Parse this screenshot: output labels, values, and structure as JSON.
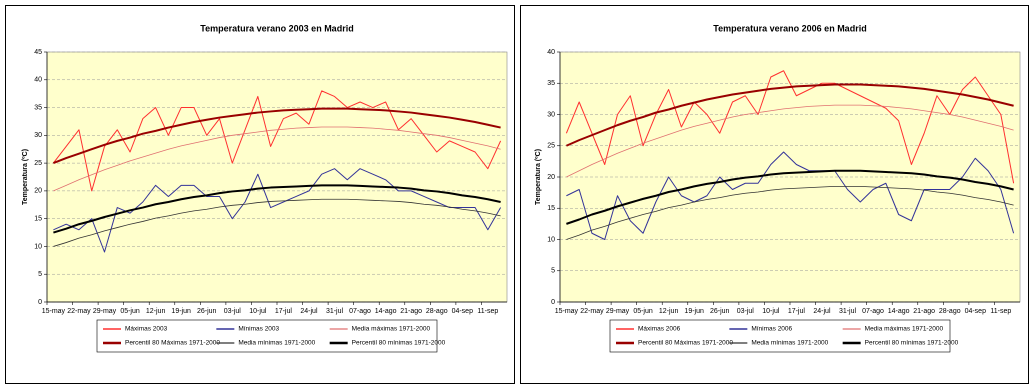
{
  "chart_data": [
    {
      "type": "line",
      "title": "Temperatura verano 2003 en Madrid",
      "y_label": "Temperatura (ºC)",
      "categories": [
        "15-may",
        null,
        "22-may",
        null,
        "29-may",
        null,
        "05-jun",
        null,
        "12-jun",
        null,
        "19-jun",
        null,
        "26-jun",
        null,
        "03-jul",
        null,
        "10-jul",
        null,
        "17-jul",
        null,
        "24-jul",
        null,
        "31-jul",
        null,
        "07-ago",
        null,
        "14-ago",
        null,
        "21-ago",
        null,
        "28-ago",
        null,
        "04-sep",
        null,
        "11-sep",
        null
      ],
      "ylim": [
        0,
        45
      ],
      "yticks": [
        0,
        5,
        10,
        15,
        20,
        25,
        30,
        35,
        40,
        45
      ],
      "grid": true,
      "series": [
        {
          "name": "Máximas 2003",
          "color": "#ff3030",
          "width": 1,
          "values": [
            25,
            28,
            31,
            20,
            28,
            31,
            27,
            33,
            35,
            30,
            35,
            35,
            30,
            33,
            25,
            31,
            37,
            28,
            33,
            34,
            32,
            38,
            37,
            35,
            36,
            35,
            36,
            31,
            33,
            30,
            27,
            29,
            28,
            27,
            24,
            29
          ]
        },
        {
          "name": "Mínimas 2003",
          "color": "#333399",
          "width": 1,
          "values": [
            13,
            14,
            13,
            15,
            9,
            17,
            16,
            18,
            21,
            19,
            21,
            21,
            19,
            19,
            15,
            18,
            23,
            17,
            18,
            19,
            20,
            23,
            24,
            22,
            24,
            23,
            22,
            20,
            20,
            19,
            18,
            17,
            17,
            17,
            13,
            17
          ]
        },
        {
          "name": "Media máximas 1971-2000",
          "color": "#e07070",
          "width": 0.8,
          "values": [
            20.0,
            21.0,
            22.0,
            22.9,
            23.8,
            24.6,
            25.4,
            26.1,
            26.8,
            27.5,
            28.1,
            28.6,
            29.1,
            29.6,
            30.0,
            30.3,
            30.6,
            30.9,
            31.1,
            31.3,
            31.4,
            31.5,
            31.5,
            31.5,
            31.4,
            31.3,
            31.1,
            30.9,
            30.6,
            30.3,
            30.0,
            29.6,
            29.1,
            28.6,
            28.1,
            27.5
          ]
        },
        {
          "name": "Percentil 80 Máximas 1971-2000",
          "color": "#990000",
          "width": 2,
          "values": [
            25.0,
            25.9,
            26.7,
            27.5,
            28.3,
            29.0,
            29.6,
            30.3,
            30.8,
            31.4,
            31.9,
            32.4,
            32.8,
            33.2,
            33.5,
            33.8,
            34.1,
            34.3,
            34.5,
            34.6,
            34.7,
            34.8,
            34.8,
            34.8,
            34.7,
            34.6,
            34.5,
            34.3,
            34.1,
            33.8,
            33.5,
            33.2,
            32.8,
            32.4,
            31.9,
            31.4
          ]
        },
        {
          "name": "Media mínimas 1971-2000",
          "color": "#333333",
          "width": 0.8,
          "values": [
            10.0,
            10.7,
            11.5,
            12.1,
            12.8,
            13.4,
            14.0,
            14.5,
            15.1,
            15.5,
            16.0,
            16.4,
            16.7,
            17.1,
            17.4,
            17.6,
            17.9,
            18.1,
            18.2,
            18.3,
            18.4,
            18.5,
            18.5,
            18.5,
            18.4,
            18.3,
            18.2,
            18.1,
            17.9,
            17.6,
            17.4,
            17.1,
            16.7,
            16.4,
            16.0,
            15.5
          ]
        },
        {
          "name": "Percentil 80 mínimas 1971-2000",
          "color": "#000000",
          "width": 2,
          "values": [
            12.5,
            13.2,
            14.0,
            14.6,
            15.3,
            15.9,
            16.5,
            17.0,
            17.6,
            18.0,
            18.5,
            18.9,
            19.2,
            19.6,
            19.9,
            20.1,
            20.4,
            20.6,
            20.7,
            20.8,
            20.9,
            21.0,
            21.0,
            21.0,
            20.9,
            20.8,
            20.7,
            20.6,
            20.4,
            20.1,
            19.9,
            19.6,
            19.2,
            18.9,
            18.5,
            18.0
          ]
        }
      ]
    },
    {
      "type": "line",
      "title": "Temperatura verano 2006 en Madrid",
      "y_label": "Temperatura (ºC)",
      "categories": [
        "15-may",
        null,
        "22-may",
        null,
        "29-may",
        null,
        "05-jun",
        null,
        "12-jun",
        null,
        "19-jun",
        null,
        "26-jun",
        null,
        "03-jul",
        null,
        "10-jul",
        null,
        "17-jul",
        null,
        "24-jul",
        null,
        "31-jul",
        null,
        "07-ago",
        null,
        "14-ago",
        null,
        "21-ago",
        null,
        "28-ago",
        null,
        "04-sep",
        null,
        "11-sep",
        null
      ],
      "ylim": [
        0,
        40
      ],
      "yticks": [
        0,
        5,
        10,
        15,
        20,
        25,
        30,
        35,
        40
      ],
      "grid": true,
      "series": [
        {
          "name": "Máximas 2006",
          "color": "#ff3030",
          "width": 1,
          "values": [
            27,
            32,
            27,
            22,
            30,
            33,
            25,
            30,
            34,
            28,
            32,
            30,
            27,
            32,
            33,
            30,
            36,
            37,
            33,
            34,
            35,
            35,
            34,
            33,
            32,
            31,
            29,
            22,
            27,
            33,
            30,
            34,
            36,
            33,
            30,
            19
          ]
        },
        {
          "name": "Mínimas 2006",
          "color": "#333399",
          "width": 1,
          "values": [
            17,
            18,
            11,
            10,
            17,
            13,
            11,
            16,
            20,
            17,
            16,
            17,
            20,
            18,
            19,
            19,
            22,
            24,
            22,
            21,
            21,
            21,
            18,
            16,
            18,
            19,
            14,
            13,
            18,
            18,
            18,
            20,
            23,
            21,
            18,
            11
          ]
        },
        {
          "name": "Media máximas 1971-2000",
          "color": "#e07070",
          "width": 0.8,
          "values": [
            20.0,
            21.0,
            22.0,
            22.9,
            23.8,
            24.6,
            25.4,
            26.1,
            26.8,
            27.5,
            28.1,
            28.6,
            29.1,
            29.6,
            30.0,
            30.3,
            30.6,
            30.9,
            31.1,
            31.3,
            31.4,
            31.5,
            31.5,
            31.5,
            31.4,
            31.3,
            31.1,
            30.9,
            30.6,
            30.3,
            30.0,
            29.6,
            29.1,
            28.6,
            28.1,
            27.5
          ]
        },
        {
          "name": "Percentil 80 Máximas 1971-2000",
          "color": "#990000",
          "width": 2,
          "values": [
            25.0,
            25.9,
            26.7,
            27.5,
            28.3,
            29.0,
            29.6,
            30.3,
            30.8,
            31.4,
            31.9,
            32.4,
            32.8,
            33.2,
            33.5,
            33.8,
            34.1,
            34.3,
            34.5,
            34.6,
            34.7,
            34.8,
            34.8,
            34.8,
            34.7,
            34.6,
            34.5,
            34.3,
            34.1,
            33.8,
            33.5,
            33.2,
            32.8,
            32.4,
            31.9,
            31.4
          ]
        },
        {
          "name": "Media mínimas 1971-2000",
          "color": "#333333",
          "width": 0.8,
          "values": [
            10.0,
            10.7,
            11.5,
            12.1,
            12.8,
            13.4,
            14.0,
            14.5,
            15.1,
            15.5,
            16.0,
            16.4,
            16.7,
            17.1,
            17.4,
            17.6,
            17.9,
            18.1,
            18.2,
            18.3,
            18.4,
            18.5,
            18.5,
            18.5,
            18.4,
            18.3,
            18.2,
            18.1,
            17.9,
            17.6,
            17.4,
            17.1,
            16.7,
            16.4,
            16.0,
            15.5
          ]
        },
        {
          "name": "Percentil 80 mínimas 1971-2000",
          "color": "#000000",
          "width": 2,
          "values": [
            12.5,
            13.2,
            14.0,
            14.6,
            15.3,
            15.9,
            16.5,
            17.0,
            17.6,
            18.0,
            18.5,
            18.9,
            19.2,
            19.6,
            19.9,
            20.1,
            20.4,
            20.6,
            20.7,
            20.8,
            20.9,
            21.0,
            21.0,
            21.0,
            20.9,
            20.8,
            20.7,
            20.6,
            20.4,
            20.1,
            19.9,
            19.6,
            19.2,
            18.9,
            18.5,
            18.0
          ]
        }
      ]
    }
  ]
}
